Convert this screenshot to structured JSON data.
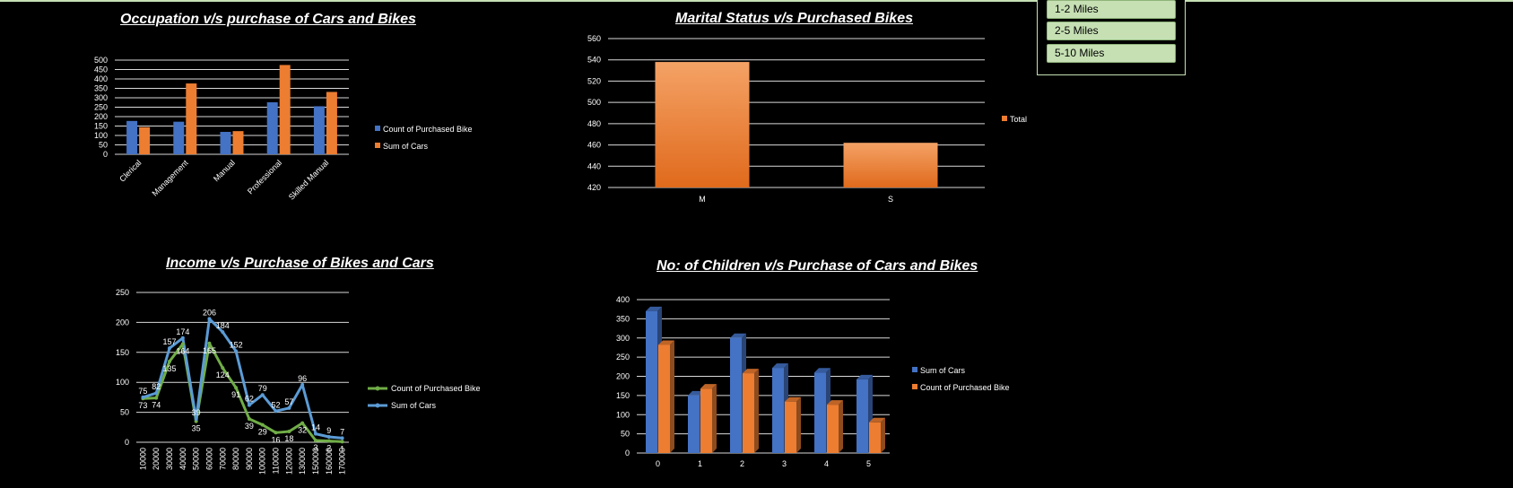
{
  "slicer": {
    "items": [
      "1-2 Miles",
      "2-5 Miles",
      "5-10 Miles"
    ]
  },
  "chart_data": [
    {
      "id": "occupation",
      "type": "bar",
      "title": "Occupation v/s purchase of Cars and Bikes",
      "categories": [
        "Clerical",
        "Management",
        "Manual",
        "Professional",
        "Skilled Manual"
      ],
      "series": [
        {
          "name": "Count of Purchased Bike",
          "values": [
            177,
            173,
            119,
            276,
            255
          ],
          "color": "#4472c4"
        },
        {
          "name": "Sum of Cars",
          "values": [
            144,
            376,
            123,
            474,
            331
          ],
          "color": "#ed7d31"
        }
      ],
      "ylim": [
        0,
        500
      ],
      "yticks": [
        0,
        50,
        100,
        150,
        200,
        250,
        300,
        350,
        400,
        450,
        500
      ],
      "grid": true,
      "legend": "right"
    },
    {
      "id": "marital",
      "type": "bar",
      "title": "Marital Status v/s Purchased Bikes",
      "categories": [
        "M",
        "S"
      ],
      "series": [
        {
          "name": "Total",
          "values": [
            538,
            462
          ],
          "color": "#ed7d31"
        }
      ],
      "ylim": [
        420,
        560
      ],
      "yticks": [
        420,
        440,
        460,
        480,
        500,
        520,
        540,
        560
      ],
      "grid": true,
      "legend": "right"
    },
    {
      "id": "income",
      "type": "line",
      "title": "Income v/s Purchase of Bikes and Cars",
      "x": [
        "10000",
        "20000",
        "30000",
        "40000",
        "50000",
        "60000",
        "70000",
        "80000",
        "90000",
        "100000",
        "110000",
        "120000",
        "130000",
        "150000",
        "160000",
        "170000"
      ],
      "series": [
        {
          "name": "Count of Purchased Bike",
          "values": [
            73,
            74,
            135,
            164,
            35,
            165,
            124,
            91,
            39,
            29,
            16,
            18,
            32,
            3,
            2,
            1
          ],
          "color": "#70ad47",
          "labelOffset": 1
        },
        {
          "name": "Sum of Cars",
          "values": [
            75,
            82,
            157,
            174,
            39,
            206,
            184,
            152,
            62,
            79,
            52,
            57,
            96,
            14,
            9,
            7
          ],
          "color": "#5b9bd5",
          "labelOffset": -1
        }
      ],
      "ylim": [
        0,
        250
      ],
      "yticks": [
        0,
        50,
        100,
        150,
        200,
        250
      ],
      "grid": true,
      "legend": "right"
    },
    {
      "id": "children",
      "type": "bar",
      "title": "No: of Children v/s Purchase of Cars and Bikes",
      "categories": [
        "0",
        "1",
        "2",
        "3",
        "4",
        "5"
      ],
      "series": [
        {
          "name": "Sum of Cars",
          "values": [
            370,
            150,
            300,
            222,
            210,
            192
          ],
          "color": "#4472c4"
        },
        {
          "name": "Count of Purchased Bike",
          "values": [
            282,
            168,
            208,
            134,
            126,
            80
          ],
          "color": "#ed7d31"
        }
      ],
      "ylim": [
        0,
        400
      ],
      "yticks": [
        0,
        50,
        100,
        150,
        200,
        250,
        300,
        350,
        400
      ],
      "grid": true,
      "legend": "right"
    }
  ]
}
